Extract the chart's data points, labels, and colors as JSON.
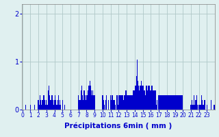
{
  "title": "",
  "xlabel": "Précipitations 6min ( mm )",
  "ylabel": "",
  "background_color": "#e0f0f0",
  "bar_color": "#0000cc",
  "grid_color": "#b0c8c8",
  "axis_color": "#808080",
  "text_color": "#0000cc",
  "ylim": [
    0,
    2.2
  ],
  "yticks": [
    0,
    1,
    2
  ],
  "xlim": [
    -0.5,
    239.5
  ],
  "xtick_positions": [
    0,
    10,
    20,
    30,
    40,
    50,
    60,
    70,
    80,
    90,
    100,
    110,
    120,
    130,
    140,
    150,
    160,
    170,
    180,
    190,
    200,
    210,
    220,
    230
  ],
  "xtick_labels": [
    "0",
    "1",
    "2",
    "3",
    "4",
    "5",
    "6",
    "7",
    "8",
    "9",
    "10",
    "11",
    "12",
    "13",
    "14",
    "15",
    "16",
    "17",
    "18",
    "19",
    "20",
    "21",
    "22",
    "23"
  ],
  "values": [
    0.0,
    0.0,
    0.0,
    0.0,
    0.1,
    0.0,
    0.0,
    0.0,
    0.0,
    0.0,
    0.1,
    0.0,
    0.0,
    0.0,
    0.0,
    0.1,
    0.0,
    0.0,
    0.0,
    0.0,
    0.2,
    0.1,
    0.3,
    0.2,
    0.1,
    0.2,
    0.3,
    0.3,
    0.2,
    0.1,
    0.2,
    0.1,
    0.4,
    0.5,
    0.3,
    0.2,
    0.2,
    0.3,
    0.2,
    0.1,
    0.2,
    0.3,
    0.2,
    0.1,
    0.2,
    0.3,
    0.1,
    0.2,
    0.1,
    0.0,
    0.2,
    0.0,
    0.0,
    0.1,
    0.0,
    0.0,
    0.0,
    0.0,
    0.0,
    0.0,
    0.0,
    0.0,
    0.0,
    0.0,
    0.0,
    0.0,
    0.0,
    0.0,
    0.0,
    0.0,
    0.3,
    0.2,
    0.2,
    0.4,
    0.5,
    0.3,
    0.2,
    0.4,
    0.3,
    0.2,
    0.3,
    0.3,
    0.4,
    0.5,
    0.6,
    0.5,
    0.4,
    0.3,
    0.4,
    0.3,
    0.3,
    0.0,
    0.0,
    0.0,
    0.0,
    0.0,
    0.0,
    0.0,
    0.0,
    0.0,
    0.3,
    0.2,
    0.1,
    0.0,
    0.2,
    0.3,
    0.0,
    0.2,
    0.0,
    0.0,
    0.3,
    0.2,
    0.3,
    0.2,
    0.2,
    0.2,
    0.1,
    0.0,
    0.3,
    0.1,
    0.3,
    0.3,
    0.3,
    0.3,
    0.3,
    0.3,
    0.2,
    0.3,
    0.3,
    0.4,
    0.3,
    0.3,
    0.3,
    0.3,
    0.3,
    0.3,
    0.3,
    0.3,
    0.4,
    0.4,
    0.4,
    0.5,
    0.7,
    1.05,
    0.6,
    0.5,
    0.4,
    0.5,
    0.6,
    0.5,
    0.5,
    0.5,
    0.4,
    0.3,
    0.5,
    0.5,
    0.4,
    0.5,
    0.5,
    0.4,
    0.4,
    0.5,
    0.5,
    0.4,
    0.4,
    0.4,
    0.4,
    0.1,
    0.2,
    0.0,
    0.3,
    0.3,
    0.3,
    0.3,
    0.3,
    0.3,
    0.3,
    0.3,
    0.3,
    0.3,
    0.3,
    0.3,
    0.3,
    0.3,
    0.3,
    0.3,
    0.3,
    0.3,
    0.3,
    0.3,
    0.3,
    0.3,
    0.3,
    0.3,
    0.3,
    0.3,
    0.3,
    0.3,
    0.3,
    0.3,
    0.0,
    0.0,
    0.0,
    0.0,
    0.0,
    0.0,
    0.0,
    0.0,
    0.0,
    0.0,
    0.1,
    0.2,
    0.1,
    0.1,
    0.3,
    0.1,
    0.2,
    0.3,
    0.1,
    0.0,
    0.1,
    0.1,
    0.1,
    0.3,
    0.2,
    0.1,
    0.1,
    0.2,
    0.0,
    0.0,
    0.1,
    0.0,
    0.0,
    0.0,
    0.0,
    0.2,
    0.0,
    0.0,
    0.0,
    0.1
  ]
}
